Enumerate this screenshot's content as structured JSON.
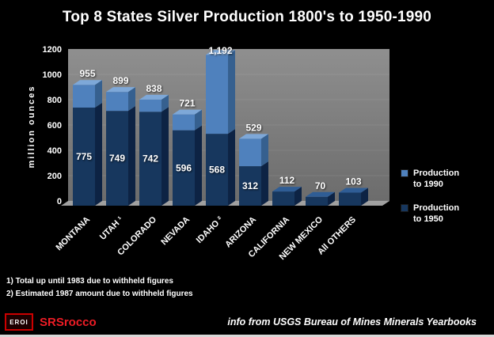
{
  "title": "Top 8 States Silver Production 1800's to 1950-1990",
  "chart_data": {
    "type": "bar",
    "title": "Top 8 States Silver Production 1800's to 1950-1990",
    "subtitle": "",
    "xlabel": "",
    "ylabel": "million ounces",
    "ylim": [
      0,
      1200
    ],
    "yticks": [
      0,
      200,
      400,
      600,
      800,
      1000,
      1200
    ],
    "grid": false,
    "legend_position": "right",
    "categories": [
      "MONTANA",
      "UTAH ¹",
      "COLORADO",
      "NEVADA",
      "IDAHO ²",
      "ARIZONA",
      "CALIFORNIA",
      "NEW MEXICO",
      "All OTHERS"
    ],
    "series": [
      {
        "name": "Production to 1990",
        "values": [
          955,
          899,
          838,
          721,
          1192,
          529,
          null,
          null,
          null
        ]
      },
      {
        "name": "Production to 1950",
        "values": [
          775,
          749,
          742,
          596,
          568,
          312,
          112,
          70,
          103
        ]
      }
    ],
    "total_labels": [
      "955",
      "899",
      "838",
      "721",
      "1,192",
      "529",
      "112",
      "70",
      "103"
    ],
    "inner_labels": [
      "775",
      "749",
      "742",
      "596",
      "568",
      "312",
      "",
      "",
      ""
    ],
    "colors": {
      "production_to_1990": "#4f81bd",
      "production_to_1950": "#17375e"
    }
  },
  "footnotes": [
    "1) Total up until 1983 due to withheld figures",
    "2) Estimated 1987 amount due to withheld figures"
  ],
  "footer": {
    "logo_box": "EROI",
    "logo_text": "SRSrocco",
    "source": "info from USGS Bureau of Mines Minerals Yearbooks"
  }
}
